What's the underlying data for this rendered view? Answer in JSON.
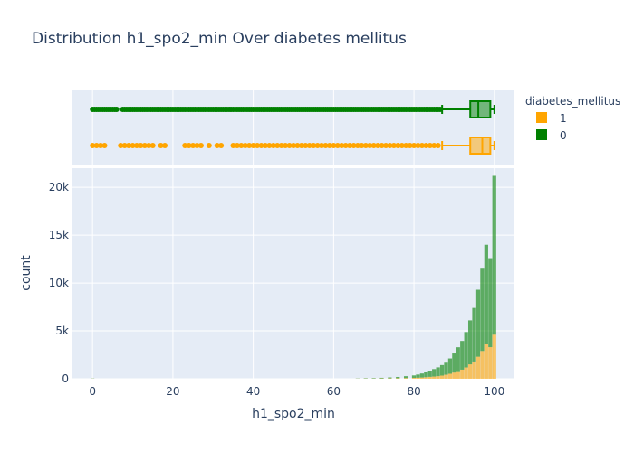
{
  "chart_data": {
    "type": "bar",
    "title": "Distribution h1_spo2_min Over diabetes mellitus",
    "xlabel": "h1_spo2_min",
    "ylabel": "count",
    "xlim": [
      -5,
      105
    ],
    "ylim": [
      0,
      22000
    ],
    "x_ticks": [
      0,
      20,
      40,
      60,
      80,
      100
    ],
    "y_ticks": [
      0,
      5000,
      10000,
      15000,
      20000
    ],
    "y_tick_labels": [
      "0",
      "5k",
      "10k",
      "15k",
      "20k"
    ],
    "barmode": "stacked",
    "legend": {
      "title": "diabetes_mellitus",
      "position": "top-right"
    },
    "series": [
      {
        "name": "1",
        "color": "#FFA500",
        "histogram": {
          "x": [
            0,
            66,
            68,
            70,
            72,
            74,
            76,
            78,
            80,
            81,
            82,
            83,
            84,
            85,
            86,
            87,
            88,
            89,
            90,
            91,
            92,
            93,
            94,
            95,
            96,
            97,
            98,
            99,
            100
          ],
          "counts": [
            10,
            10,
            20,
            20,
            30,
            40,
            50,
            70,
            90,
            110,
            130,
            160,
            200,
            230,
            270,
            330,
            420,
            520,
            640,
            790,
            950,
            1180,
            1500,
            1800,
            2300,
            2900,
            3600,
            3300,
            4600
          ]
        },
        "box": {
          "median": 97,
          "q1": 94,
          "q3": 99,
          "whisker_low": 87,
          "whisker_high": 100,
          "outliers": [
            0,
            1,
            2,
            3,
            7,
            8,
            9,
            10,
            11,
            12,
            13,
            14,
            15,
            17,
            18,
            23,
            24,
            25,
            26,
            27,
            29,
            31,
            32,
            35,
            36,
            37,
            38,
            39,
            40,
            41,
            42,
            43,
            44,
            45,
            46,
            47,
            48,
            49,
            50,
            51,
            52,
            53,
            54,
            55,
            56,
            57,
            58,
            59,
            60,
            61,
            62,
            63,
            64,
            65,
            66,
            67,
            68,
            69,
            70,
            71,
            72,
            73,
            74,
            75,
            76,
            77,
            78,
            79,
            80,
            81,
            82,
            83,
            84,
            85,
            86
          ]
        }
      },
      {
        "name": "0",
        "color": "#008000",
        "histogram": {
          "x": [
            0,
            66,
            68,
            70,
            72,
            74,
            76,
            78,
            80,
            81,
            82,
            83,
            84,
            85,
            86,
            87,
            88,
            89,
            90,
            91,
            92,
            93,
            94,
            95,
            96,
            97,
            98,
            99,
            100
          ],
          "counts": [
            20,
            20,
            40,
            50,
            70,
            100,
            140,
            200,
            260,
            330,
            420,
            520,
            650,
            780,
            920,
            1100,
            1350,
            1600,
            2000,
            2500,
            3000,
            3700,
            4600,
            5600,
            7000,
            8600,
            10400,
            9300,
            16600
          ]
        },
        "box": {
          "median": 96,
          "q1": 94,
          "q3": 99,
          "whisker_low": 87,
          "whisker_high": 100,
          "outliers": [
            0,
            0.5,
            1,
            1.5,
            2,
            2.5,
            3,
            3.5,
            4,
            4.5,
            5,
            5.5,
            6,
            7.5,
            8,
            8.5,
            9,
            9.5,
            10,
            10.5,
            11,
            11.5,
            12,
            12.5,
            13,
            13.5,
            14,
            14.5,
            15,
            15.5,
            16,
            16.5,
            17,
            17.5,
            18,
            18.5,
            19,
            19.5,
            20,
            20.5,
            21,
            21.5,
            22,
            22.5,
            23,
            23.5,
            24,
            24.5,
            25,
            25.5,
            26,
            26.5,
            27,
            27.5,
            28,
            28.5,
            29,
            29.5,
            30,
            30.5,
            31,
            31.5,
            32,
            32.5,
            33,
            33.5,
            34,
            34.5,
            35,
            35.5,
            36,
            36.5,
            37,
            37.5,
            38,
            38.5,
            39,
            39.5,
            40,
            40.5,
            41,
            41.5,
            42,
            42.5,
            43,
            43.5,
            44,
            44.5,
            45,
            45.5,
            46,
            46.5,
            47,
            47.5,
            48,
            48.5,
            49,
            49.5,
            50,
            50.5,
            51,
            51.5,
            52,
            52.5,
            53,
            53.5,
            54,
            54.5,
            55,
            55.5,
            56,
            56.5,
            57,
            57.5,
            58,
            58.5,
            59,
            59.5,
            60,
            60.5,
            61,
            61.5,
            62,
            62.5,
            63,
            63.5,
            64,
            64.5,
            65,
            65.5,
            66,
            66.5,
            67,
            67.5,
            68,
            68.5,
            69,
            69.5,
            70,
            70.5,
            71,
            71.5,
            72,
            72.5,
            73,
            73.5,
            74,
            74.5,
            75,
            75.5,
            76,
            76.5,
            77,
            77.5,
            78,
            78.5,
            79,
            79.5,
            80,
            80.5,
            81,
            81.5,
            82,
            82.5,
            83,
            83.5,
            84,
            84.5,
            85,
            85.5,
            86,
            86.5
          ]
        }
      }
    ]
  }
}
